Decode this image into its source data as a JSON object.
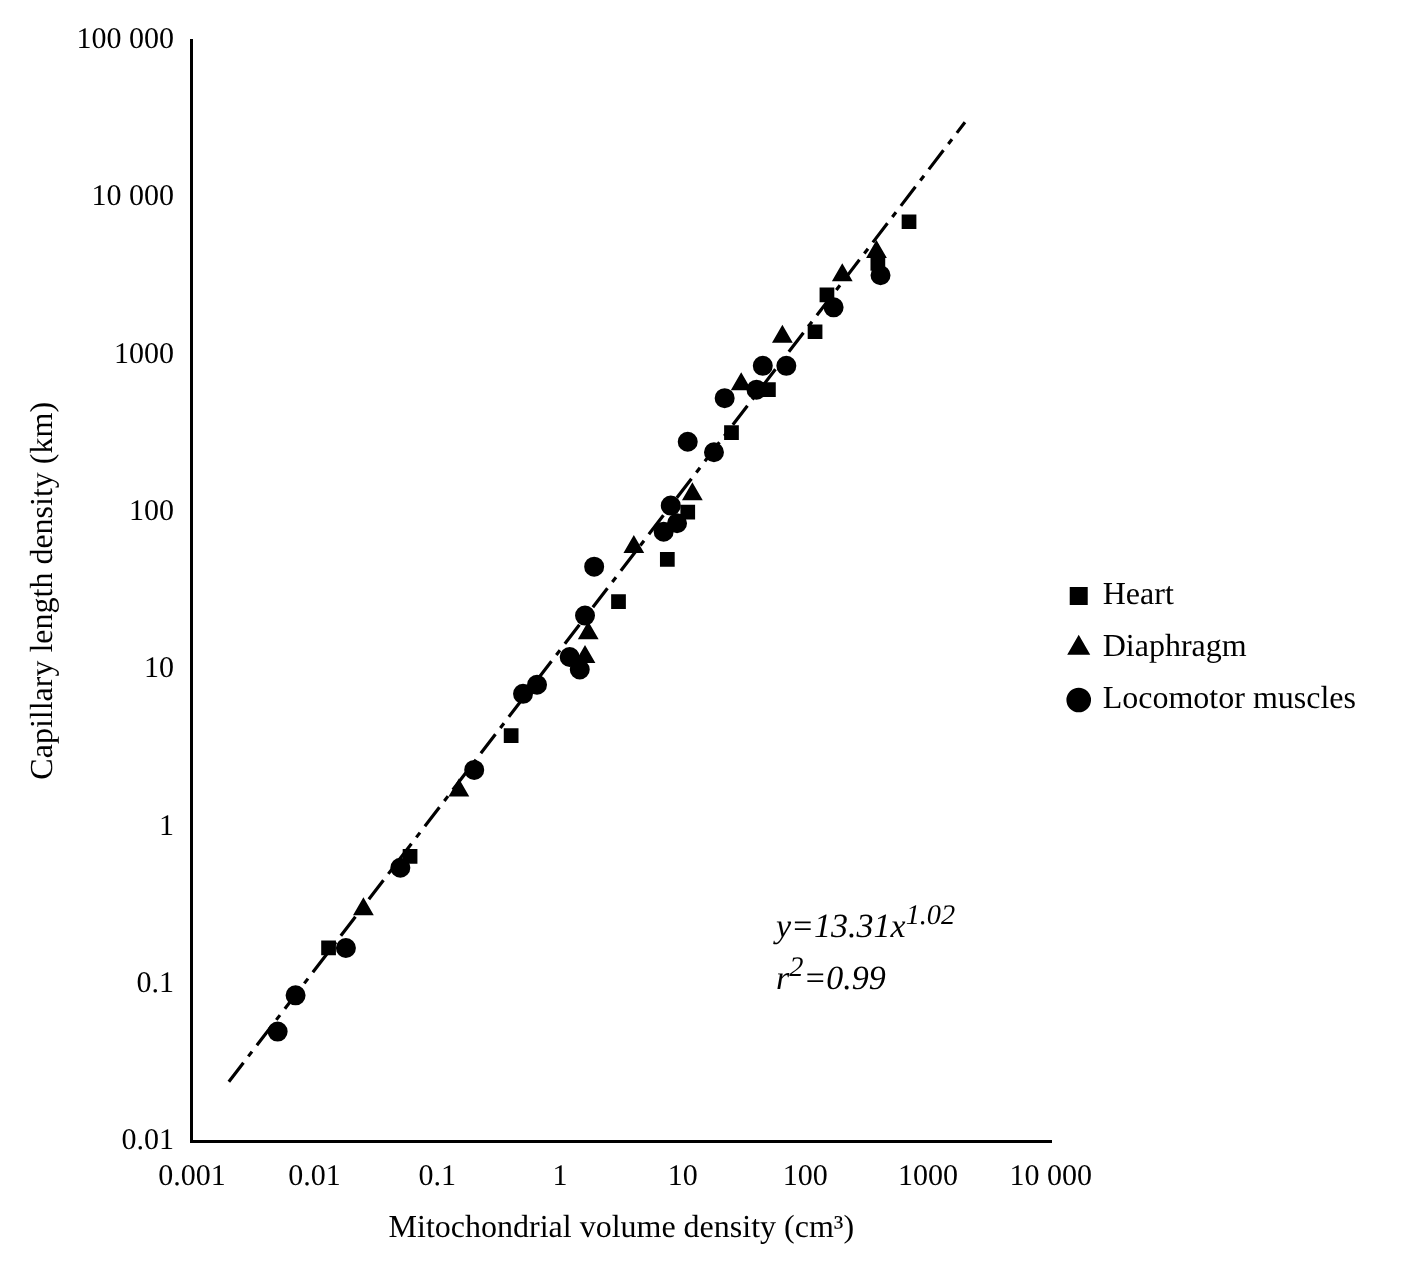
{
  "chart_data": {
    "type": "scatter",
    "xlabel": "Mitochondrial volume density (cm³)",
    "ylabel": "Capillary length density (km)",
    "log": "xy",
    "grid": false,
    "legend": "right",
    "xlim": [
      0.001,
      10000
    ],
    "ylim": [
      0.01,
      100000
    ],
    "xticks": [
      0.001,
      0.01,
      0.1,
      1,
      10,
      100,
      1000,
      {
        "value": 10000,
        "label": "10 000"
      }
    ],
    "yticks": [
      0.01,
      0.1,
      1,
      10,
      100,
      1000,
      {
        "value": 10000,
        "label": "10 000"
      },
      {
        "value": 100000,
        "label": "100 000"
      }
    ],
    "annotations": [
      "y=13.31x$^{1.02}$",
      "r$^{2}$=0.99"
    ],
    "series": [
      {
        "name": "Heart",
        "color": "#000000",
        "marker": "square",
        "x": [
          0.013,
          0.06,
          0.4,
          3,
          7.5,
          11,
          25,
          50,
          120,
          150,
          390,
          700
        ],
        "values": [
          0.17,
          0.65,
          3.8,
          27,
          50,
          100,
          320,
          600,
          1400,
          2400,
          3800,
          7000
        ]
      },
      {
        "name": "Diaphragm",
        "color": "#000000",
        "marker": "triangle",
        "x": [
          0.025,
          0.15,
          1.6,
          1.7,
          4,
          12,
          30,
          65,
          200,
          380
        ],
        "values": [
          0.3,
          1.7,
          12,
          17,
          60,
          130,
          650,
          1300,
          3200,
          4500
        ]
      },
      {
        "name": "Locomotor muscles",
        "color": "#000000",
        "marker": "circle",
        "x": [
          0.005,
          0.007,
          0.018,
          0.05,
          0.2,
          0.5,
          0.65,
          1.2,
          1.45,
          1.6,
          1.9,
          7,
          8,
          9,
          11,
          18,
          22,
          40,
          45,
          70,
          170,
          410
        ],
        "values": [
          0.05,
          0.085,
          0.17,
          0.55,
          2.3,
          7,
          8,
          12,
          10,
          22,
          45,
          75,
          110,
          85,
          280,
          240,
          530,
          600,
          850,
          850,
          2000,
          3200
        ]
      },
      {
        "type": "line",
        "color": "#000000",
        "marker": "none",
        "line_style": "dashed",
        "x": [
          0.002,
          2000
        ],
        "values": [
          0.024,
          30000
        ]
      }
    ]
  }
}
